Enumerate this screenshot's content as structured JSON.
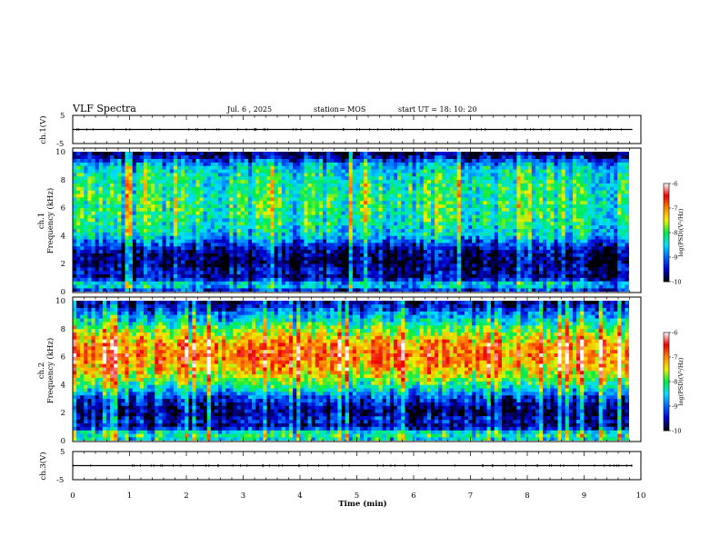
{
  "header": {
    "title": "VLF Spectra",
    "date": "Jul. 6 , 2025",
    "station": "station= MOS",
    "start": "start UT = 18: 10: 20"
  },
  "colors": {
    "colormap": [
      "#000000",
      "#0000cc",
      "#0066ff",
      "#00e0ff",
      "#00ee44",
      "#f0f000",
      "#ff8800",
      "#ee0000",
      "#ffffff"
    ],
    "trace": "#000000",
    "frame": "#000000"
  },
  "chart_data": [
    {
      "type": "line",
      "name": "ch.1 waveform",
      "ylabel": "ch.1(V)",
      "ylim": [
        -5,
        5
      ],
      "yticks": [
        "5",
        "-5"
      ],
      "x": [
        0,
        9.85
      ],
      "y": [
        0,
        0
      ],
      "xlim": [
        0,
        10
      ]
    },
    {
      "type": "heatmap",
      "ylabel": "ch.1\nFrequency (kHz)",
      "ylim": [
        0,
        10
      ],
      "yticks": [
        "0",
        "2",
        "4",
        "6",
        "8",
        "10"
      ],
      "xlim": [
        0,
        9.85
      ],
      "frequency_profile_log_psd": [
        {
          "f": 0.2,
          "v": -9.3
        },
        {
          "f": 0.5,
          "v": -8.3
        },
        {
          "f": 1.0,
          "v": -9.8
        },
        {
          "f": 1.5,
          "v": -9.6
        },
        {
          "f": 2.0,
          "v": -9.9
        },
        {
          "f": 3.0,
          "v": -9.7
        },
        {
          "f": 4.0,
          "v": -8.6
        },
        {
          "f": 5.0,
          "v": -8.3
        },
        {
          "f": 6.0,
          "v": -8.2
        },
        {
          "f": 7.0,
          "v": -8.2
        },
        {
          "f": 8.0,
          "v": -8.3
        },
        {
          "f": 9.0,
          "v": -8.6
        },
        {
          "f": 9.8,
          "v": -9.9
        }
      ],
      "colorbar": {
        "label": "log(PSD)(V²/Hz)",
        "ticks": [
          "-6",
          "-7",
          "-8",
          "-9",
          "-10"
        ],
        "range": [
          -10,
          -6
        ]
      }
    },
    {
      "type": "heatmap",
      "ylabel": "ch.2\nFrequency (kHz)",
      "ylim": [
        0,
        10
      ],
      "yticks": [
        "0",
        "2",
        "4",
        "6",
        "8",
        "10"
      ],
      "xlim": [
        0,
        9.85
      ],
      "frequency_profile_log_psd": [
        {
          "f": 0.2,
          "v": -8.4
        },
        {
          "f": 0.5,
          "v": -8.0
        },
        {
          "f": 1.0,
          "v": -9.7
        },
        {
          "f": 1.5,
          "v": -9.4
        },
        {
          "f": 2.0,
          "v": -9.8
        },
        {
          "f": 3.0,
          "v": -9.3
        },
        {
          "f": 4.0,
          "v": -8.1
        },
        {
          "f": 5.0,
          "v": -7.3
        },
        {
          "f": 6.0,
          "v": -6.9
        },
        {
          "f": 7.0,
          "v": -7.1
        },
        {
          "f": 8.0,
          "v": -7.9
        },
        {
          "f": 9.0,
          "v": -8.8
        },
        {
          "f": 9.8,
          "v": -9.6
        }
      ],
      "colorbar": {
        "label": "log(PSD)(V²/Hz)",
        "ticks": [
          "-6",
          "-7",
          "-8",
          "-9",
          "-10"
        ],
        "range": [
          -10,
          -6
        ]
      }
    },
    {
      "type": "line",
      "name": "ch.3 waveform",
      "ylabel": "ch.3(V)",
      "ylim": [
        -5,
        5
      ],
      "yticks": [
        "5",
        "-5"
      ],
      "x": [
        0,
        9.85
      ],
      "y": [
        0,
        0
      ],
      "xlim": [
        0,
        10
      ]
    }
  ],
  "xaxis": {
    "label": "Time (min)",
    "ticks": [
      "0",
      "1",
      "2",
      "3",
      "4",
      "5",
      "6",
      "7",
      "8",
      "9",
      "10"
    ],
    "range": [
      0,
      10
    ]
  }
}
